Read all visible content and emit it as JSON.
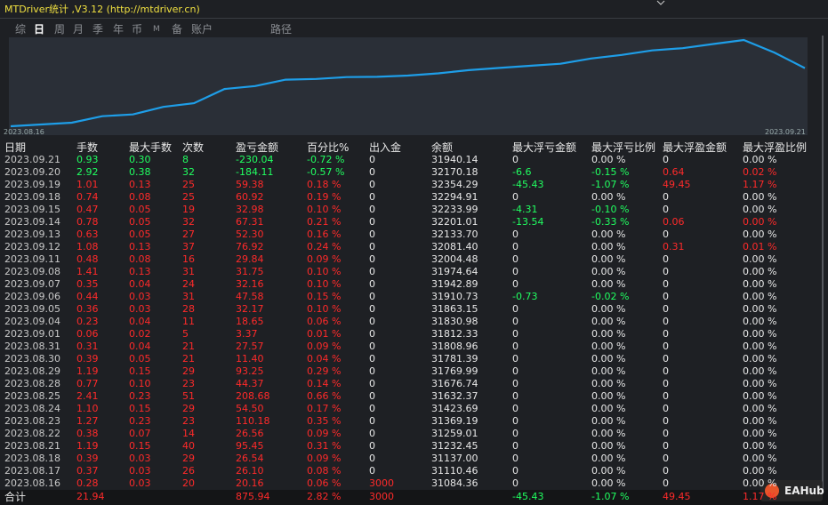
{
  "title": "MTDriver统计 ,V3.12 (http://mtdriver.cn)",
  "toolbar": [
    "综",
    "日",
    "周",
    "月",
    "季",
    "年",
    "币",
    "M",
    "备",
    "账户"
  ],
  "toolbar_path": "路径",
  "chart": {
    "start_label": "2023.08.16",
    "end_label": "2023.09.21",
    "line_color": "#1e9ee8"
  },
  "table": {
    "header": [
      "日期",
      "手数",
      "最大手数",
      "次数",
      "盈亏金额",
      "百分比%",
      "出入金",
      "余额",
      "最大浮亏金额",
      "最大浮亏比例",
      "最大浮盈金额",
      "最大浮盈比例"
    ],
    "rows": [
      [
        "2023.09.21",
        "0.93",
        "0.30",
        "8",
        "-230.04",
        "-0.72 %",
        "0",
        "31940.14",
        "0",
        "0.00 %",
        "0",
        "0.00 %"
      ],
      [
        "2023.09.20",
        "2.92",
        "0.38",
        "32",
        "-184.11",
        "-0.57 %",
        "0",
        "32170.18",
        "-6.6",
        "-0.15 %",
        "0.64",
        "0.02 %"
      ],
      [
        "2023.09.19",
        "1.01",
        "0.13",
        "25",
        "59.38",
        "0.18 %",
        "0",
        "32354.29",
        "-45.43",
        "-1.07 %",
        "49.45",
        "1.17 %"
      ],
      [
        "2023.09.18",
        "0.74",
        "0.08",
        "25",
        "60.92",
        "0.19 %",
        "0",
        "32294.91",
        "0",
        "0.00 %",
        "0",
        "0.00 %"
      ],
      [
        "2023.09.15",
        "0.47",
        "0.05",
        "19",
        "32.98",
        "0.10 %",
        "0",
        "32233.99",
        "-4.31",
        "-0.10 %",
        "0",
        "0.00 %"
      ],
      [
        "2023.09.14",
        "0.78",
        "0.05",
        "32",
        "67.31",
        "0.21 %",
        "0",
        "32201.01",
        "-13.54",
        "-0.33 %",
        "0.06",
        "0.00 %"
      ],
      [
        "2023.09.13",
        "0.63",
        "0.05",
        "27",
        "52.30",
        "0.16 %",
        "0",
        "32133.70",
        "0",
        "0.00 %",
        "0",
        "0.00 %"
      ],
      [
        "2023.09.12",
        "1.08",
        "0.13",
        "37",
        "76.92",
        "0.24 %",
        "0",
        "32081.40",
        "0",
        "0.00 %",
        "0.31",
        "0.01 %"
      ],
      [
        "2023.09.11",
        "0.48",
        "0.08",
        "16",
        "29.84",
        "0.09 %",
        "0",
        "32004.48",
        "0",
        "0.00 %",
        "0",
        "0.00 %"
      ],
      [
        "2023.09.08",
        "1.41",
        "0.13",
        "31",
        "31.75",
        "0.10 %",
        "0",
        "31974.64",
        "0",
        "0.00 %",
        "0",
        "0.00 %"
      ],
      [
        "2023.09.07",
        "0.35",
        "0.04",
        "24",
        "32.16",
        "0.10 %",
        "0",
        "31942.89",
        "0",
        "0.00 %",
        "0",
        "0.00 %"
      ],
      [
        "2023.09.06",
        "0.44",
        "0.03",
        "31",
        "47.58",
        "0.15 %",
        "0",
        "31910.73",
        "-0.73",
        "-0.02 %",
        "0",
        "0.00 %"
      ],
      [
        "2023.09.05",
        "0.36",
        "0.03",
        "28",
        "32.17",
        "0.10 %",
        "0",
        "31863.15",
        "0",
        "0.00 %",
        "0",
        "0.00 %"
      ],
      [
        "2023.09.04",
        "0.23",
        "0.04",
        "11",
        "18.65",
        "0.06 %",
        "0",
        "31830.98",
        "0",
        "0.00 %",
        "0",
        "0.00 %"
      ],
      [
        "2023.09.01",
        "0.06",
        "0.02",
        "5",
        "3.37",
        "0.01 %",
        "0",
        "31812.33",
        "0",
        "0.00 %",
        "0",
        "0.00 %"
      ],
      [
        "2023.08.31",
        "0.31",
        "0.04",
        "21",
        "27.57",
        "0.09 %",
        "0",
        "31808.96",
        "0",
        "0.00 %",
        "0",
        "0.00 %"
      ],
      [
        "2023.08.30",
        "0.39",
        "0.05",
        "21",
        "11.40",
        "0.04 %",
        "0",
        "31781.39",
        "0",
        "0.00 %",
        "0",
        "0.00 %"
      ],
      [
        "2023.08.29",
        "1.19",
        "0.15",
        "29",
        "93.25",
        "0.29 %",
        "0",
        "31769.99",
        "0",
        "0.00 %",
        "0",
        "0.00 %"
      ],
      [
        "2023.08.28",
        "0.77",
        "0.10",
        "23",
        "44.37",
        "0.14 %",
        "0",
        "31676.74",
        "0",
        "0.00 %",
        "0",
        "0.00 %"
      ],
      [
        "2023.08.25",
        "2.41",
        "0.23",
        "51",
        "208.68",
        "0.66 %",
        "0",
        "31632.37",
        "0",
        "0.00 %",
        "0",
        "0.00 %"
      ],
      [
        "2023.08.24",
        "1.10",
        "0.15",
        "29",
        "54.50",
        "0.17 %",
        "0",
        "31423.69",
        "0",
        "0.00 %",
        "0",
        "0.00 %"
      ],
      [
        "2023.08.23",
        "1.27",
        "0.23",
        "23",
        "110.18",
        "0.35 %",
        "0",
        "31369.19",
        "0",
        "0.00 %",
        "0",
        "0.00 %"
      ],
      [
        "2023.08.22",
        "0.38",
        "0.07",
        "14",
        "26.56",
        "0.09 %",
        "0",
        "31259.01",
        "0",
        "0.00 %",
        "0",
        "0.00 %"
      ],
      [
        "2023.08.21",
        "1.19",
        "0.15",
        "40",
        "95.45",
        "0.31 %",
        "0",
        "31232.45",
        "0",
        "0.00 %",
        "0",
        "0.00 %"
      ],
      [
        "2023.08.18",
        "0.39",
        "0.03",
        "29",
        "26.54",
        "0.09 %",
        "0",
        "31137.00",
        "0",
        "0.00 %",
        "0",
        "0.00 %"
      ],
      [
        "2023.08.17",
        "0.37",
        "0.03",
        "26",
        "26.10",
        "0.08 %",
        "0",
        "31110.46",
        "0",
        "0.00 %",
        "0",
        "0.00 %"
      ],
      [
        "2023.08.16",
        "0.28",
        "0.03",
        "20",
        "20.16",
        "0.06 %",
        "3000",
        "31084.36",
        "0",
        "0.00 %",
        "0",
        "0.00 %"
      ]
    ],
    "total": [
      "合计",
      "21.94",
      null,
      null,
      "875.94",
      "2.82 %",
      "3000",
      null,
      "-45.43",
      "-1.07 %",
      "49.45",
      "1.17 %"
    ]
  },
  "watermark": "EAHub"
}
